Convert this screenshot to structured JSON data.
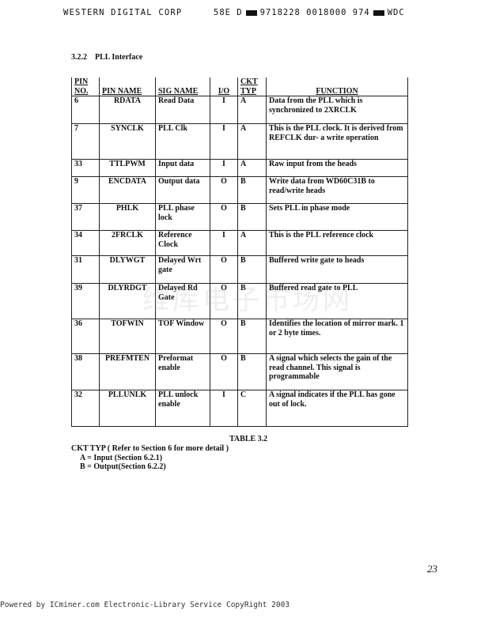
{
  "header": {
    "left": "WESTERN DIGITAL CORP",
    "code1": "58E D",
    "code2": "9718228 0018000 974",
    "code3": "WDC"
  },
  "section": {
    "number": "3.2.2",
    "title": "PLL Interface"
  },
  "table": {
    "columns": [
      "PIN NO.",
      "PIN NAME",
      "SIG NAME",
      "I/O",
      "CKT TYP",
      "FUNCTION"
    ],
    "rows": [
      {
        "pin": "6",
        "name": "RDATA",
        "sig": "Read Data",
        "io": "I",
        "ckt": "A",
        "func": "Data from the PLL which is synchronized to 2XRCLK"
      },
      {
        "pin": "7",
        "name": "SYNCLK",
        "sig": "PLL Clk",
        "io": "I",
        "ckt": "A",
        "func": "This is the PLL clock. It is derived from REFCLK dur- a write operation"
      },
      {
        "pin": "33",
        "name": "TTLPWM",
        "sig": "Input data",
        "io": "I",
        "ckt": "A",
        "func": "Raw input from the heads"
      },
      {
        "pin": "9",
        "name": "ENCDATA",
        "sig": "Output data",
        "io": "O",
        "ckt": "B",
        "func": "Write data from WD60C31B to read/write heads"
      },
      {
        "pin": "37",
        "name": "PHLK",
        "sig": "PLL phase lock",
        "io": "O",
        "ckt": "B",
        "func": "Sets PLL in phase mode"
      },
      {
        "pin": "34",
        "name": "2FRCLK",
        "sig": "Reference Clock",
        "io": "I",
        "ckt": "A",
        "func": "This is the PLL reference clock"
      },
      {
        "pin": "31",
        "name": "DLYWGT",
        "sig": "Delayed Wrt gate",
        "io": "O",
        "ckt": "B",
        "func": "Buffered write gate to heads"
      },
      {
        "pin": "39",
        "name": "DLYRDGT",
        "sig": "Delayed Rd Gate",
        "io": "O",
        "ckt": "B",
        "func": "Buffered read gate to PLL"
      },
      {
        "pin": "36",
        "name": "TOFWIN",
        "sig": "TOF Window",
        "io": "O",
        "ckt": "B",
        "func": "Identifies the location of mirror mark. 1 or 2 byte times."
      },
      {
        "pin": "38",
        "name": "PREFMTEN",
        "sig": "Preformat enable",
        "io": "O",
        "ckt": "B",
        "func": "A signal which selects the gain of the read channel. This signal is programmable"
      },
      {
        "pin": "32",
        "name": "PLLUNLK",
        "sig": "PLL unlock enable",
        "io": "I",
        "ckt": "C",
        "func": "A signal indicates if the PLL has gone out of lock."
      }
    ]
  },
  "caption": "TABLE   3.2",
  "notes": {
    "title": "CKT TYP  ( Refer to Section 6 for more detail )",
    "a": "A  = Input (Section 6.2.1)",
    "b": "B  = Output(Section 6.2.2)"
  },
  "watermark": "维库电子市场网",
  "page_number": "23",
  "footer": "Powered by ICminer.com Electronic-Library Service CopyRight 2003"
}
